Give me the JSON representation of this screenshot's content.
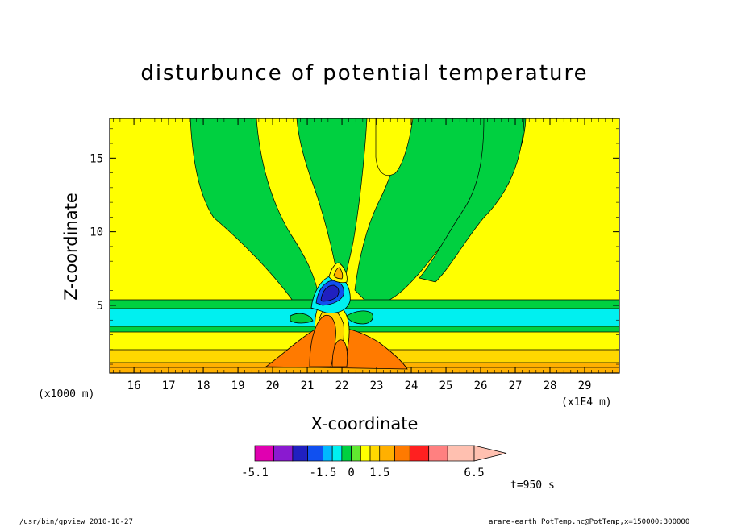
{
  "chart_data": {
    "type": "heatmap",
    "title": "disturbunce of potential temperature",
    "xlabel": "X-coordinate",
    "ylabel": "Z-coordinate",
    "x_unit_left": "(x1000 m)",
    "x_unit_right": "(x1E4 m)",
    "xlim": [
      15.3,
      30.0
    ],
    "ylim": [
      0.4,
      17.7
    ],
    "x_ticks": [
      16,
      17,
      18,
      19,
      20,
      21,
      22,
      23,
      24,
      25,
      26,
      27,
      28,
      29
    ],
    "y_ticks": [
      5,
      10,
      15
    ],
    "colorbar": {
      "levels": [
        -5.1,
        -4.1,
        -3.1,
        -2.3,
        -1.5,
        -1.0,
        -0.5,
        0,
        0.5,
        1.0,
        1.5,
        2.3,
        3.1,
        4.1,
        5.1,
        6.5
      ],
      "colors": [
        "#e000b0",
        "#8a1ad0",
        "#2020c0",
        "#1050f0",
        "#00b8ff",
        "#00f0f0",
        "#00d040",
        "#60e830",
        "#ffff00",
        "#ffd800",
        "#ffb000",
        "#ff7a00",
        "#ff2020",
        "#ff8080",
        "#ffc0b0"
      ],
      "tick_labels": [
        "-5.1",
        "-1.5",
        "0",
        "1.5",
        "6.5"
      ]
    },
    "time_label": "t=950 s",
    "footer_left": "/usr/bin/gpview  2010-10-27",
    "footer_right": "arare-earth_PotTemp.nc@PotTemp,x=150000:300000"
  }
}
